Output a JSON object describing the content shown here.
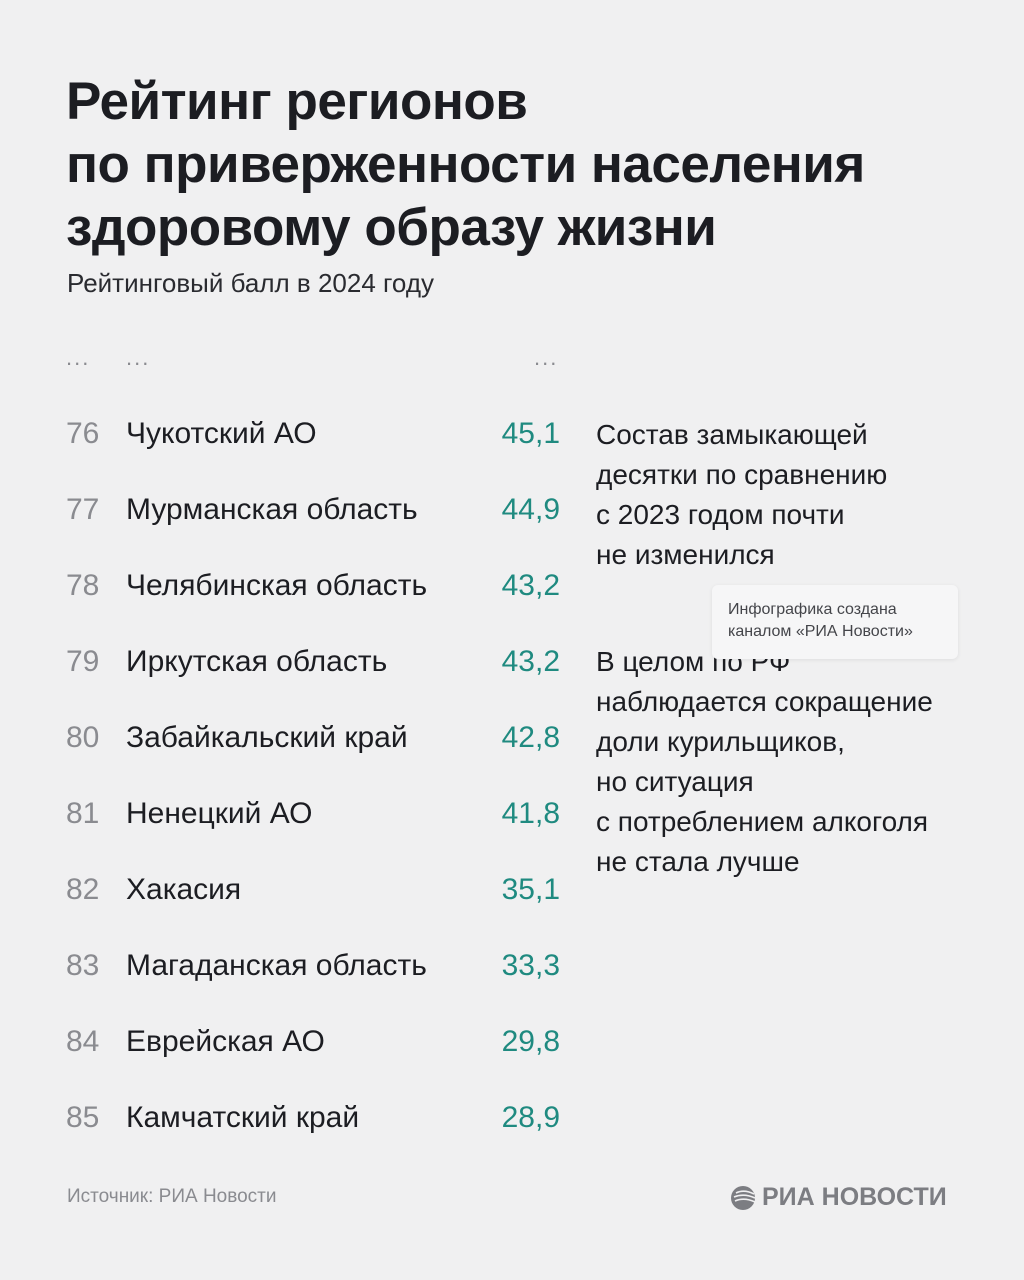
{
  "title_lines": [
    "Рейтинг регионов",
    "по приверженности населения",
    "здоровому образу жизни"
  ],
  "subtitle": "Рейтинговый балл в 2024 году",
  "ellipsis": "...",
  "chart_data": {
    "type": "table",
    "columns": [
      "rank",
      "region",
      "score"
    ],
    "rows": [
      {
        "rank": "76",
        "region": "Чукотский АО",
        "score": "45,1"
      },
      {
        "rank": "77",
        "region": "Мурманская область",
        "score": "44,9"
      },
      {
        "rank": "78",
        "region": "Челябинская область",
        "score": "43,2"
      },
      {
        "rank": "79",
        "region": "Иркутская область",
        "score": "43,2"
      },
      {
        "rank": "80",
        "region": "Забайкальский край",
        "score": "42,8"
      },
      {
        "rank": "81",
        "region": "Ненецкий АО",
        "score": "41,8"
      },
      {
        "rank": "82",
        "region": "Хакасия",
        "score": "35,1"
      },
      {
        "rank": "83",
        "region": "Магаданская область",
        "score": "33,3"
      },
      {
        "rank": "84",
        "region": "Еврейская АО",
        "score": "29,8"
      },
      {
        "rank": "85",
        "region": "Камчатский край",
        "score": "28,9"
      }
    ],
    "score_color": "#1f8a80"
  },
  "notes": [
    "Состав замыкающей\nдесятки по сравнению\nс 2023 годом почти\nне изменился",
    "В целом по РФ\nнаблюдается сокращение\nдоли курильщиков,\nно ситуация\nс потреблением алкоголя\nне стала лучше"
  ],
  "tooltip": "Инфографика создана\nканалом «РИА Новости»",
  "source": "Источник: РИА Новости",
  "logo_text": "РИА НОВОСТИ"
}
